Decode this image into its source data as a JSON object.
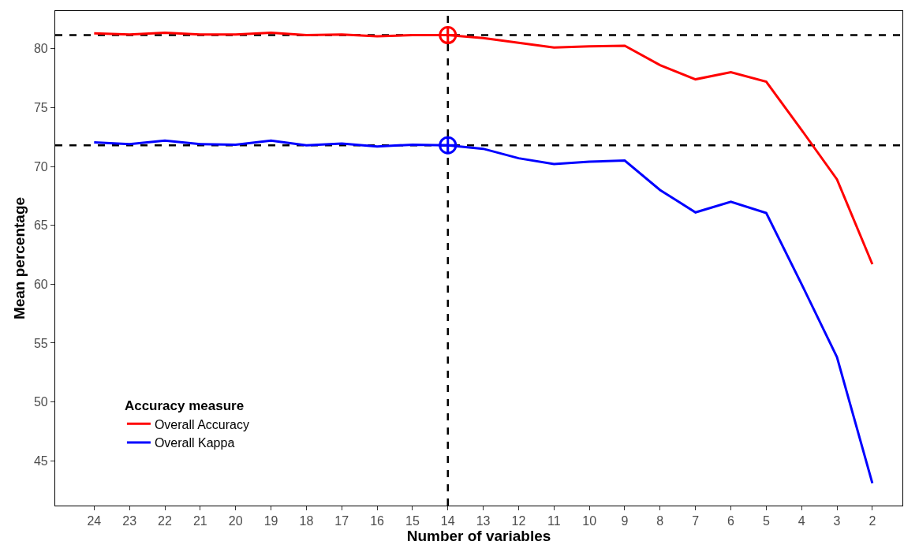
{
  "chart_data": {
    "type": "line",
    "xlabel": "Number of variables",
    "ylabel": "Mean percentage",
    "legend_title": "Accuracy measure",
    "categories": [
      "24",
      "23",
      "22",
      "21",
      "20",
      "19",
      "18",
      "17",
      "16",
      "15",
      "14",
      "13",
      "12",
      "11",
      "10",
      "9",
      "8",
      "7",
      "6",
      "5",
      "4",
      "3",
      "2"
    ],
    "series": [
      {
        "name": "Overall Accuracy",
        "color": "#ff0000",
        "values": [
          81.3,
          81.2,
          81.35,
          81.2,
          81.2,
          81.35,
          81.15,
          81.2,
          81.05,
          81.15,
          81.15,
          80.9,
          80.5,
          80.1,
          80.2,
          80.25,
          78.6,
          77.4,
          78.0,
          77.2,
          73.1,
          68.9,
          61.7
        ]
      },
      {
        "name": "Overall Kappa",
        "color": "#0000ff",
        "values": [
          72.05,
          71.9,
          72.2,
          71.9,
          71.85,
          72.2,
          71.8,
          71.95,
          71.7,
          71.85,
          71.8,
          71.5,
          70.7,
          70.2,
          70.4,
          70.5,
          68.0,
          66.1,
          67.0,
          66.05,
          60.0,
          53.8,
          43.1
        ]
      },
      {
        "type": "scatter",
        "marker": "cross",
        "color": "#ff0000",
        "x": [
          "14"
        ],
        "values": [
          81.15
        ]
      },
      {
        "type": "scatter",
        "marker": "cross",
        "color": "#0000ff",
        "x": [
          "14"
        ],
        "values": [
          71.8
        ]
      }
    ],
    "ylim": [
      41.2,
      83.2
    ],
    "yticks": [
      45,
      50,
      55,
      60,
      65,
      70,
      75,
      80
    ],
    "grid": false,
    "legend": "bottom left",
    "marker": "none",
    "line_style": "solid",
    "ref_lines": [
      {
        "axis": "y",
        "value": 81.15,
        "color": "#000000",
        "line_style": "dashed"
      },
      {
        "axis": "y",
        "value": 71.8,
        "color": "#000000",
        "line_style": "dashed"
      },
      {
        "axis": "x",
        "value": "14",
        "color": "#000000",
        "line_style": "dashed"
      }
    ]
  }
}
